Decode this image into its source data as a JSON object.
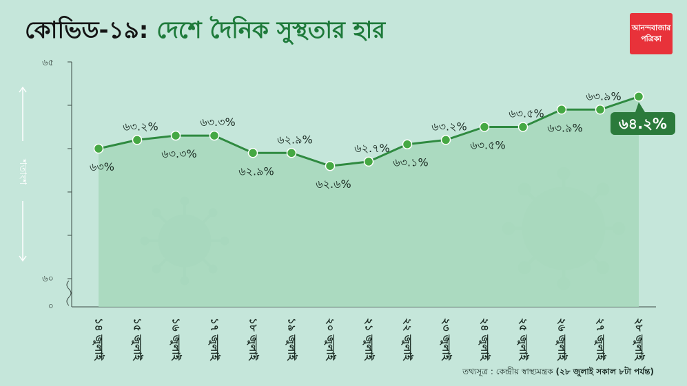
{
  "title_part1": "কোভিড-১৯:",
  "title_part2": "দেশে দৈনিক সুস্থতার হার",
  "logo_line1": "আনন্দবাজার",
  "logo_line2": "পত্রিকা",
  "source_prefix": "তথ্যসূত্র : কেন্দ্রীয় স্বাস্থ্যমন্ত্রক",
  "source_suffix": "(২৮ জুলাই সকাল ৮টা পর্যন্ত)",
  "colors": {
    "background": "#c5e6da",
    "area_fill": "#a6d7bb",
    "line": "#2f8a40",
    "point": "#45a843",
    "title_accent": "#1e7a3a",
    "logo": "#e8323a"
  },
  "chart_data": {
    "type": "line",
    "title": "কোভিড-১৯: দেশে দৈনিক সুস্থতার হার",
    "ylabel": "শতাংশ",
    "ylim": [
      60,
      65
    ],
    "y_ticks": [
      "৬৫",
      "৬০",
      "০"
    ],
    "axis_break": true,
    "categories": [
      "১৪ জুলাই",
      "১৫ জুলাই",
      "১৬ জুলাই",
      "১৭ জুলাই",
      "১৮ জুলাই",
      "১৯ জুলাই",
      "২০ জুলাই",
      "২১ জুলাই",
      "২২ জুলাই",
      "২৩ জুলাই",
      "২৪ জুলাই",
      "২৫ জুলাই",
      "২৬ জুলাই",
      "২৭ জুলাই",
      "২৮ জুলাই"
    ],
    "values": [
      63,
      63.2,
      63.3,
      63.3,
      62.9,
      62.9,
      62.6,
      62.7,
      63.1,
      63.2,
      63.5,
      63.5,
      63.9,
      63.9,
      64.2
    ],
    "labels": [
      "৬৩%",
      "৬৩.২%",
      "৬৩.৩%",
      "৬৩.৩%",
      "৬২.৯%",
      "৬২.৯%",
      "৬২.৬%",
      "৬২.৭%",
      "৬৩.১%",
      "৬৩.২%",
      "৬৩.৫%",
      "৬৩.৫%",
      "৬৩.৯%",
      "৬৩.৯%",
      "৬৪.২%"
    ],
    "label_position": [
      "below",
      "above",
      "below",
      "above",
      "below",
      "above",
      "below",
      "above",
      "below",
      "above",
      "below",
      "above",
      "below",
      "above",
      "highlight"
    ],
    "grid": false,
    "legend": "none"
  }
}
